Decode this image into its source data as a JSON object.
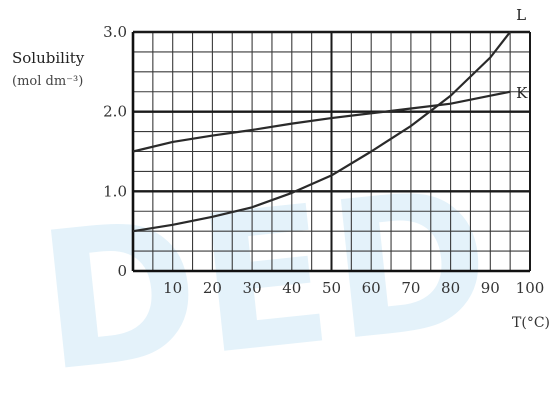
{
  "chart_data": {
    "type": "line",
    "title": "",
    "xlabel": "T(°C)",
    "ylabel": "Solubility",
    "ylabel_unit": "(mol dm⁻³)",
    "xlim": [
      0,
      100
    ],
    "ylim": [
      0,
      3.0
    ],
    "x_ticks": [
      10,
      20,
      30,
      40,
      50,
      60,
      70,
      80,
      90,
      100
    ],
    "x_tick_labels": [
      "10",
      "20",
      "30",
      "40",
      "50",
      "60",
      "70",
      "80",
      "90",
      "100"
    ],
    "y_ticks": [
      0,
      1.0,
      2.0,
      3.0
    ],
    "y_tick_labels": [
      "0",
      "1.0",
      "2.0",
      "3.0"
    ],
    "grid": true,
    "series": [
      {
        "name": "L",
        "color": "#2a2a2a",
        "x": [
          0,
          10,
          20,
          30,
          40,
          50,
          60,
          70,
          80,
          90,
          95
        ],
        "y": [
          0.5,
          0.58,
          0.68,
          0.8,
          0.98,
          1.2,
          1.5,
          1.82,
          2.2,
          2.68,
          3.0
        ]
      },
      {
        "name": "K",
        "color": "#2a2a2a",
        "x": [
          0,
          10,
          20,
          30,
          40,
          50,
          60,
          70,
          80,
          90,
          95
        ],
        "y": [
          1.5,
          1.62,
          1.7,
          1.77,
          1.85,
          1.92,
          1.98,
          2.04,
          2.1,
          2.2,
          2.25
        ]
      }
    ]
  },
  "watermark_text": "DED"
}
